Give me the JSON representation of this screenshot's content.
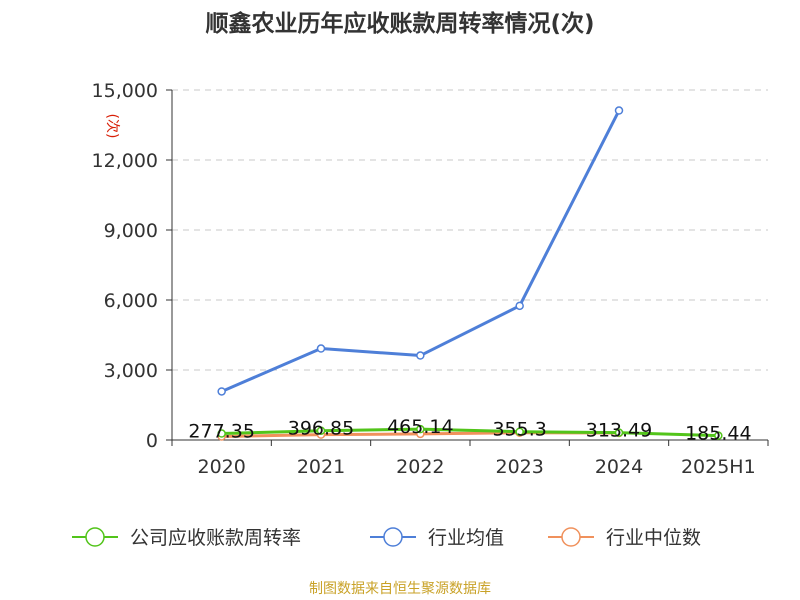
{
  "chart_data": {
    "type": "line",
    "title": "顺鑫农业历年应收账款周转率情况(次)",
    "ylabel": "(次)",
    "xlabel": "",
    "categories": [
      "2020",
      "2021",
      "2022",
      "2023",
      "2024",
      "2025H1"
    ],
    "ylim": [
      0,
      15000
    ],
    "yticks": [
      0,
      3000,
      6000,
      9000,
      12000,
      15000
    ],
    "ytick_labels": [
      "0",
      "3,000",
      "6,000",
      "9,000",
      "12,000",
      "15,000"
    ],
    "grid": true,
    "legend_position": "bottom",
    "series": [
      {
        "name": "公司应收账款周转率",
        "color": "#52c41a",
        "values": [
          277.35,
          396.85,
          465.14,
          355.3,
          313.49,
          185.44
        ],
        "labels": [
          "277.35",
          "396.85",
          "465.14",
          "355.3",
          "313.49",
          "185.44"
        ]
      },
      {
        "name": "行业均值",
        "color": "#4e7fd8",
        "values": [
          2080,
          3920,
          3620,
          5750,
          14120,
          null
        ]
      },
      {
        "name": "行业中位数",
        "color": "#f0915c",
        "values": [
          150,
          230,
          260,
          310,
          300,
          null
        ]
      }
    ]
  },
  "footer": "制图数据来自恒生聚源数据库"
}
